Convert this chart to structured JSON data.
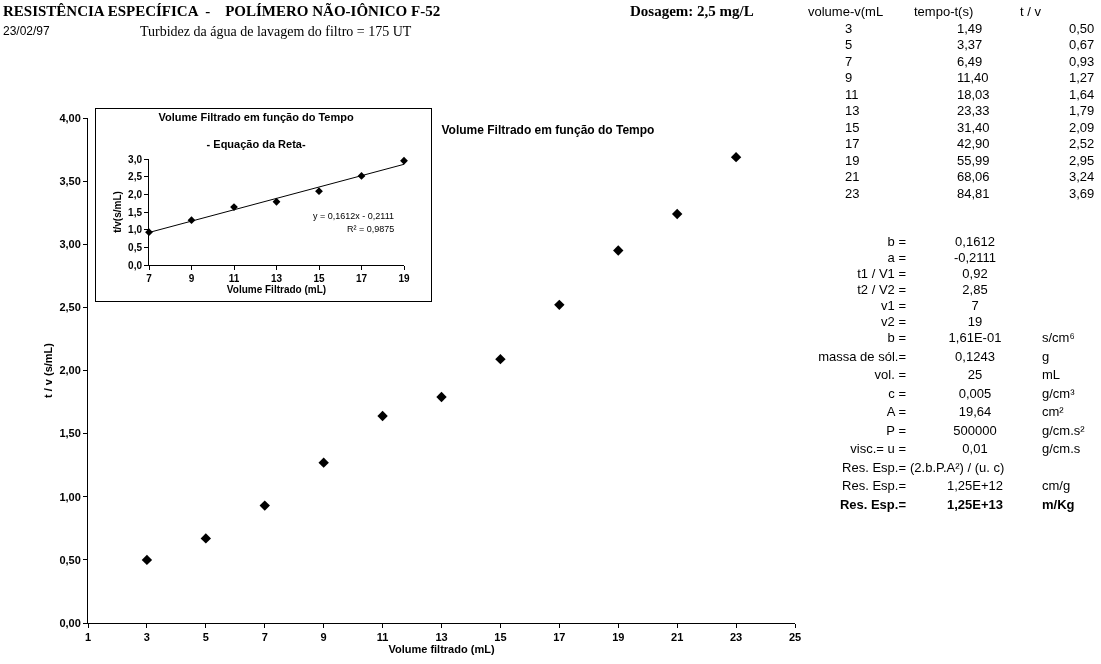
{
  "chart_data": [
    {
      "type": "scatter",
      "title": "Volume Filtrado em função do Tempo",
      "xlabel": "Volume filtrado (mL)",
      "ylabel": "t / v (s/mL)",
      "x": [
        3,
        5,
        7,
        9,
        11,
        13,
        15,
        17,
        19,
        21,
        23
      ],
      "series": [
        {
          "color": "#000000",
          "values": [
            0.5,
            0.67,
            0.93,
            1.27,
            1.64,
            1.79,
            2.09,
            2.52,
            2.95,
            3.24,
            3.69
          ]
        }
      ],
      "xlim": [
        1,
        25
      ],
      "xticks": [
        1,
        3,
        5,
        7,
        9,
        11,
        13,
        15,
        17,
        19,
        21,
        23,
        25
      ],
      "ylim": [
        0,
        4
      ],
      "yticks": [
        {
          "value": 0,
          "label": "0,00"
        },
        {
          "value": 0.5,
          "label": "0,50"
        },
        {
          "value": 1,
          "label": "1,00"
        },
        {
          "value": 1.5,
          "label": "1,50"
        },
        {
          "value": 2,
          "label": "2,00"
        },
        {
          "value": 2.5,
          "label": "2,50"
        },
        {
          "value": 3,
          "label": "3,00"
        },
        {
          "value": 3.5,
          "label": "3,50"
        },
        {
          "value": 4,
          "label": "4,00"
        }
      ],
      "grid": false,
      "marker": "diamond"
    },
    {
      "type": "scatter",
      "title": "Volume Filtrado em função do Tempo",
      "subtitle": "- Equação da Reta-",
      "xlabel": "Volume Filtrado (mL)",
      "ylabel": "t/v(s/mL)",
      "x": [
        7,
        9,
        11,
        13,
        15,
        17,
        19
      ],
      "series": [
        {
          "color": "#000000",
          "values": [
            0.93,
            1.27,
            1.64,
            1.79,
            2.09,
            2.52,
            2.95
          ]
        },
        {
          "type": "line",
          "color": "#000000",
          "marker": "none",
          "x": [
            7,
            19
          ],
          "values": [
            0.92,
            2.85
          ]
        }
      ],
      "xlim": [
        7,
        19
      ],
      "xticks": [
        7,
        9,
        11,
        13,
        15,
        17,
        19
      ],
      "ylim": [
        0,
        3
      ],
      "yticks": [
        {
          "value": 0,
          "label": "0,0"
        },
        {
          "value": 0.5,
          "label": "0,5"
        },
        {
          "value": 1,
          "label": "1,0"
        },
        {
          "value": 1.5,
          "label": "1,5"
        },
        {
          "value": 2,
          "label": "2,0"
        },
        {
          "value": 2.5,
          "label": "2,5"
        },
        {
          "value": 3,
          "label": "3,0"
        }
      ],
      "annotations": [
        "y = 0,1612x - 0,2111",
        "R² = 0,9875"
      ],
      "grid": false,
      "marker": "diamond"
    },
    {
      "type": "other",
      "title": "RESISTÊNCIA ESPECÍFICA  -    POLÍMERO NÃO-IÔNICO F-52",
      "subtitle": "Turbidez da água de lavagem do filtro = 175 UT",
      "annotations": [
        "Dosagem: 2,5 mg/L",
        "23/02/97"
      ]
    },
    {
      "type": "other",
      "annotations": [
        "volume-v(mL\ttempo-t(s)\tt / v",
        "3\t1,49\t0,50",
        "5\t3,37\t0,67",
        "7\t6,49\t0,93",
        "9\t11,40\t1,27",
        "11\t18,03\t1,64",
        "13\t23,33\t1,79",
        "15\t31,40\t2,09",
        "17\t42,90\t2,52",
        "19\t55,99\t2,95",
        "21\t68,06\t3,24",
        "23\t84,81\t3,69"
      ]
    },
    {
      "type": "other",
      "annotations": [
        "b =\t0,1612",
        "a =\t-0,2111",
        "t1 / V1 =\t0,92",
        "t2 / V2 =\t2,85",
        "v1 =\t7",
        "v2 =\t19",
        "b =\t1,61E-01\ts/cm⁶",
        "massa de sól.=\t0,1243\tg",
        "vol. =\t25\tmL",
        "c =\t0,005\tg/cm³",
        "A =\t19,64\tcm²",
        "P =\t500000\tg/cm.s²",
        "visc.= u =\t0,01\tg/cm.s",
        "Res. Esp.=\t(2.b.P.A²) / (u. c)",
        "Res. Esp.=\t1,25E+12\tcm/g",
        "Res. Esp.=\t1,25E+13\tm/Kg"
      ]
    }
  ]
}
